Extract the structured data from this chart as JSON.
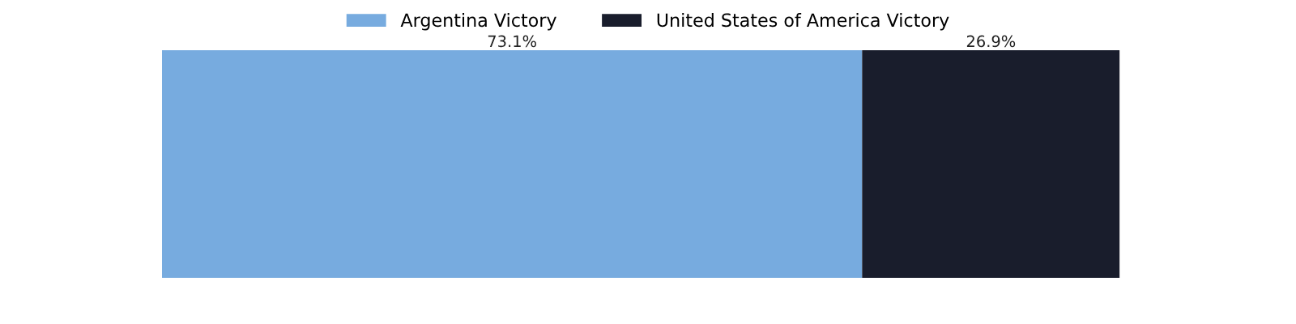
{
  "chart_data": {
    "type": "bar",
    "orientation": "horizontal",
    "stacked": true,
    "categories": [
      null
    ],
    "series": [
      {
        "name": "Argentina Victory",
        "color": "#77abdf",
        "values": [
          73.1
        ],
        "value_labels": [
          "73.1%"
        ]
      },
      {
        "name": "United States of America Victory",
        "color": "#191d2c",
        "values": [
          26.9
        ],
        "value_labels": [
          "26.9%"
        ]
      }
    ],
    "xlim": [
      0,
      100
    ],
    "tick_labels": false,
    "grid": false,
    "legend": "top"
  }
}
